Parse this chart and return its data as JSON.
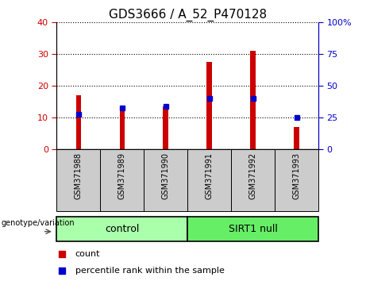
{
  "title": "GDS3666 / A_52_P470128",
  "categories": [
    "GSM371988",
    "GSM371989",
    "GSM371990",
    "GSM371991",
    "GSM371992",
    "GSM371993"
  ],
  "count_values": [
    17,
    13,
    13.5,
    27.5,
    31,
    7
  ],
  "percentile_values": [
    11,
    13,
    13.5,
    16,
    16,
    10
  ],
  "red_color": "#cc0000",
  "blue_color": "#0000cc",
  "left_ylim": [
    0,
    40
  ],
  "right_ylim": [
    0,
    100
  ],
  "left_yticks": [
    0,
    10,
    20,
    30,
    40
  ],
  "right_yticks": [
    0,
    25,
    50,
    75,
    100
  ],
  "left_tick_labels": [
    "0",
    "10",
    "20",
    "30",
    "40"
  ],
  "right_tick_labels": [
    "0",
    "25",
    "50",
    "75",
    "100%"
  ],
  "control_label": "control",
  "sirt1_label": "SIRT1 null",
  "group_label": "genotype/variation",
  "legend_count": "count",
  "legend_percentile": "percentile rank within the sample",
  "bar_width": 0.12,
  "control_bg": "#aaffaa",
  "sirt1_bg": "#66ee66",
  "xlabel_area_bg": "#cccccc",
  "title_fontsize": 11,
  "tick_fontsize": 8,
  "label_fontsize": 8
}
